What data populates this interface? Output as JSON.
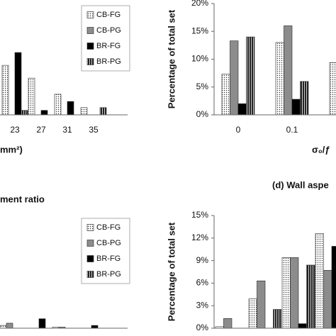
{
  "chart_data": [
    {
      "type": "bar",
      "xlabel": "mm²)",
      "categories": [
        "23",
        "27",
        "31",
        "35"
      ],
      "ylim": [
        0,
        20
      ],
      "legend": "top-right",
      "series": [
        {
          "name": "CB-FG",
          "color": "#ffffff",
          "pattern": "dots",
          "values": [
            8.9,
            6.6,
            3.7,
            1.3
          ]
        },
        {
          "name": "CB-PG",
          "color": "#8c8c8c",
          "values": [
            0,
            0,
            0,
            0
          ]
        },
        {
          "name": "BR-FG",
          "color": "#000000",
          "values": [
            11.2,
            0.8,
            2.4,
            0
          ]
        },
        {
          "name": "BR-PG",
          "color": "#555555",
          "pattern": "stripes",
          "values": [
            0.8,
            0,
            0,
            1.3
          ]
        }
      ]
    },
    {
      "type": "bar",
      "ylabel": "Percentage of  total set",
      "xlabel": "σ₀/ƒ",
      "categories": [
        "0",
        "0.1",
        null
      ],
      "ylim": [
        0,
        20
      ],
      "yticks": [
        {
          "value": 0,
          "label": "0%"
        },
        {
          "value": 5,
          "label": "5%"
        },
        {
          "value": 10,
          "label": "10%"
        },
        {
          "value": 15,
          "label": "15%"
        },
        {
          "value": 20,
          "label": "20%"
        }
      ],
      "series": [
        {
          "color": "#ffffff",
          "pattern": "dots",
          "values": [
            7.3,
            13,
            9.4
          ]
        },
        {
          "color": "#8c8c8c",
          "values": [
            13.3,
            16,
            null
          ]
        },
        {
          "color": "#000000",
          "values": [
            2,
            2.8,
            null
          ]
        },
        {
          "color": "#555555",
          "pattern": "stripes",
          "values": [
            14,
            6,
            null
          ]
        }
      ]
    },
    {
      "type": "bar",
      "title": "ment ratio",
      "ylim": [
        0,
        20
      ],
      "legend": "top-right",
      "series": [
        {
          "name": "CB-FG",
          "color": "#ffffff",
          "pattern": "dots",
          "values": [
            0.5,
            0,
            0.2,
            0
          ]
        },
        {
          "name": "CB-PG",
          "color": "#8c8c8c",
          "values": [
            0.9,
            0,
            0.2,
            0
          ]
        },
        {
          "name": "BR-FG",
          "color": "#000000",
          "values": [
            0,
            1.7,
            0,
            0.5
          ]
        },
        {
          "name": "BR-PG",
          "color": "#555555",
          "pattern": "stripes",
          "values": [
            0,
            0,
            0,
            0
          ]
        }
      ]
    },
    {
      "type": "bar",
      "title": "(d) Wall aspe",
      "ylabel": "Percentage of  total set",
      "ylim": [
        0,
        15
      ],
      "yticks": [
        {
          "value": 0,
          "label": "0%"
        },
        {
          "value": 3,
          "label": "3%"
        },
        {
          "value": 6,
          "label": "6%"
        },
        {
          "value": 9,
          "label": "9%"
        },
        {
          "value": 12,
          "label": "12%"
        },
        {
          "value": 15,
          "label": "15%"
        }
      ],
      "series": [
        {
          "color": "#ffffff",
          "pattern": "dots",
          "values": [
            0.2,
            3.9,
            9.4,
            12.6
          ]
        },
        {
          "color": "#8c8c8c",
          "values": [
            1.3,
            6.3,
            9.4,
            7.7
          ]
        },
        {
          "color": "#000000",
          "values": [
            0,
            0,
            0.6,
            10.9
          ]
        },
        {
          "color": "#555555",
          "pattern": "stripes",
          "values": [
            0,
            2.5,
            8.4,
            null
          ]
        }
      ]
    }
  ]
}
